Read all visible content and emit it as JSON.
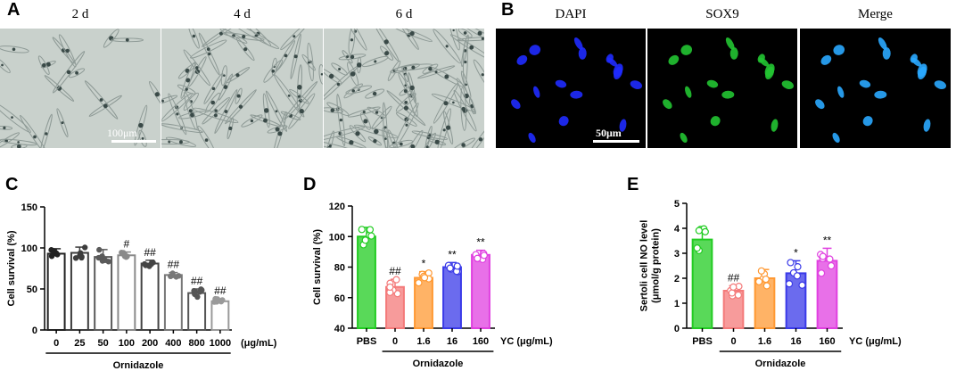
{
  "panels": {
    "A": {
      "letter": "A",
      "images": [
        {
          "caption": "2 d",
          "cell_count": 24
        },
        {
          "caption": "4 d",
          "cell_count": 55
        },
        {
          "caption": "6 d",
          "cell_count": 75
        }
      ],
      "scale_bar": "100μm",
      "background_color": "#c9d1cc",
      "cell_color": "#3a4a48"
    },
    "B": {
      "letter": "B",
      "images": [
        {
          "caption": "DAPI",
          "channel": "blue",
          "color": "#1f2bff"
        },
        {
          "caption": "SOX9",
          "channel": "green",
          "color": "#22c432"
        },
        {
          "caption": "Merge",
          "channel": "cyan",
          "color": "#2aa8ff"
        }
      ],
      "scale_bar": "50μm",
      "background_color": "#000000"
    },
    "C": {
      "letter": "C"
    },
    "D": {
      "letter": "D"
    },
    "E": {
      "letter": "E"
    }
  },
  "chart_data": [
    {
      "panel": "C",
      "type": "bar",
      "ylabel": "Cell survival (%)",
      "ylim": [
        0,
        150
      ],
      "yticks": [
        0,
        50,
        100,
        150
      ],
      "categories": [
        "0",
        "25",
        "50",
        "100",
        "200",
        "400",
        "800",
        "1000"
      ],
      "values": [
        93,
        94,
        89,
        91,
        81,
        67,
        45,
        35
      ],
      "errors": [
        6,
        7,
        9,
        4,
        4,
        3,
        5,
        3
      ],
      "significance": [
        "",
        "",
        "",
        "#",
        "##",
        "##",
        "##",
        "##"
      ],
      "bar_colors": [
        "#222222",
        "#3c3c3c",
        "#5a5a5a",
        "#8a8a8a",
        "#444444",
        "#777777",
        "#555555",
        "#9a9a9a"
      ],
      "x_unit": "(μg/mL)",
      "group_label": "Ornidazole"
    },
    {
      "panel": "D",
      "type": "bar",
      "ylabel": "Cell survival (%)",
      "ylim": [
        40,
        120
      ],
      "yticks": [
        40,
        60,
        80,
        100,
        120
      ],
      "categories": [
        "PBS",
        "0",
        "1.6",
        "16",
        "160"
      ],
      "values": [
        100,
        67,
        73,
        80,
        88
      ],
      "errors": [
        6,
        5,
        4,
        3,
        3
      ],
      "significance": [
        "",
        "##",
        "*",
        "**",
        "**"
      ],
      "bar_colors": [
        "#22cc22",
        "#f47a7a",
        "#ff9933",
        "#3a3ae8",
        "#e040e0"
      ],
      "x_unit": "YC (μg/mL)",
      "group_label": "Ornidazole"
    },
    {
      "panel": "E",
      "type": "bar",
      "ylabel": "Sertoli cell NO level\n(μmol/g protein)",
      "ylim": [
        0,
        5
      ],
      "yticks": [
        0,
        1,
        2,
        3,
        4,
        5
      ],
      "categories": [
        "PBS",
        "0",
        "1.6",
        "16",
        "160"
      ],
      "values": [
        3.55,
        1.5,
        2.0,
        2.2,
        2.7
      ],
      "errors": [
        0.45,
        0.2,
        0.35,
        0.5,
        0.5
      ],
      "significance": [
        "",
        "##",
        "",
        "*",
        "**"
      ],
      "bar_colors": [
        "#22cc22",
        "#f47a7a",
        "#ff9933",
        "#3a3ae8",
        "#e040e0"
      ],
      "x_unit": "YC (μg/mL)",
      "group_label": "Ornidazole"
    }
  ]
}
